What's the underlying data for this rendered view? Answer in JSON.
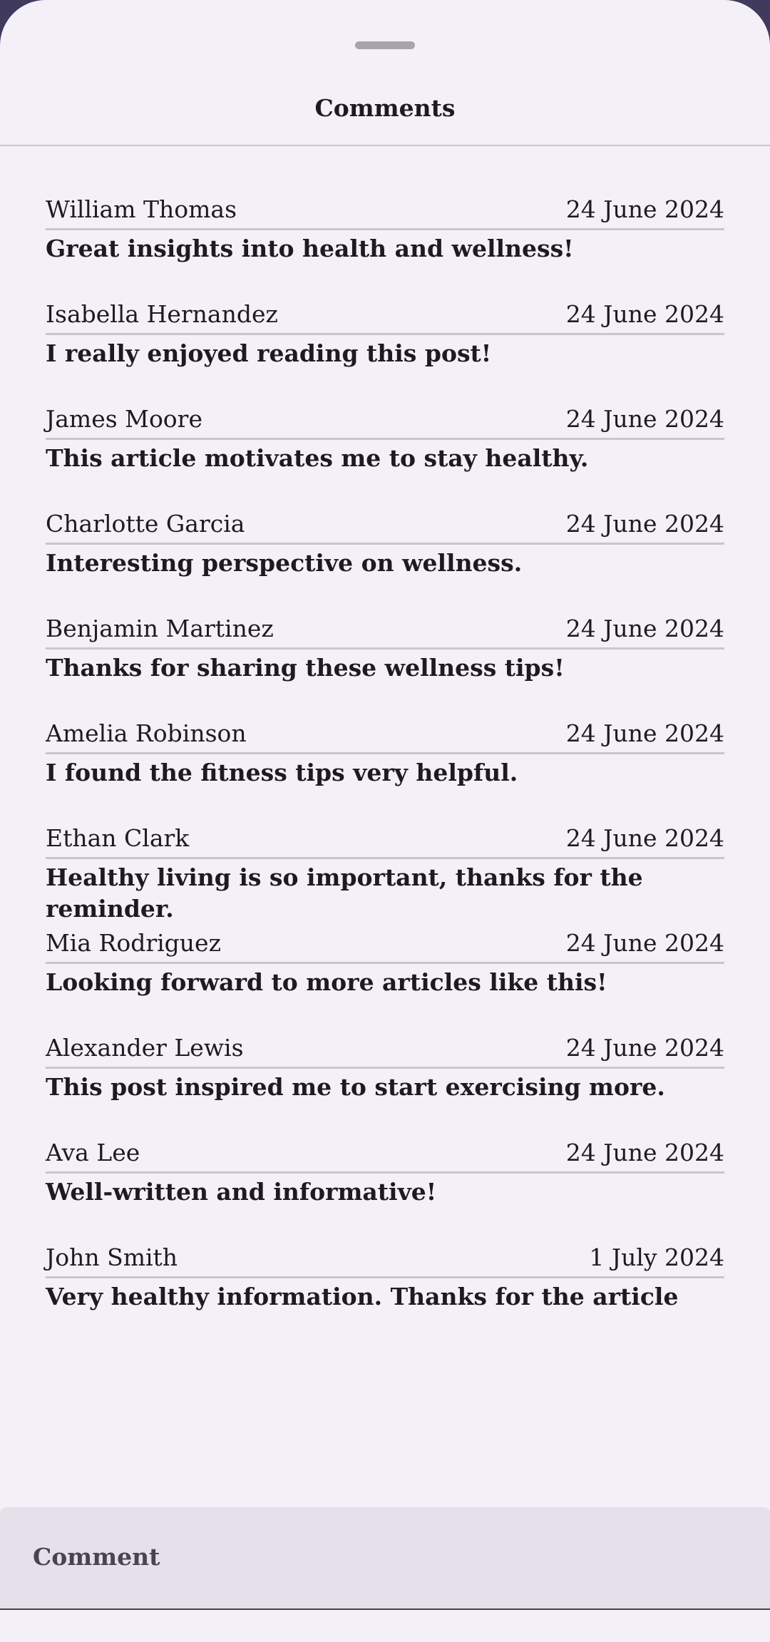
{
  "sheet": {
    "title": "Comments"
  },
  "comments": [
    {
      "author": "William Thomas",
      "date": "24 June 2024",
      "text": "Great insights into health and wellness!"
    },
    {
      "author": "Isabella Hernandez",
      "date": "24 June 2024",
      "text": "I really enjoyed reading this post!"
    },
    {
      "author": "James Moore",
      "date": "24 June 2024",
      "text": "This article motivates me to stay healthy."
    },
    {
      "author": "Charlotte Garcia",
      "date": "24 June 2024",
      "text": "Interesting perspective on wellness."
    },
    {
      "author": "Benjamin Martinez",
      "date": "24 June 2024",
      "text": "Thanks for sharing these wellness tips!"
    },
    {
      "author": "Amelia Robinson",
      "date": "24 June 2024",
      "text": "I found the fitness tips very helpful."
    },
    {
      "author": "Ethan Clark",
      "date": "24 June 2024",
      "text": "Healthy living is so important, thanks for the reminder."
    },
    {
      "author": "Mia Rodriguez",
      "date": "24 June 2024",
      "text": "Looking forward to more articles like this!"
    },
    {
      "author": "Alexander Lewis",
      "date": "24 June 2024",
      "text": "This post inspired me to start exercising more."
    },
    {
      "author": "Ava Lee",
      "date": "24 June 2024",
      "text": "Well-written and informative!"
    },
    {
      "author": "John Smith",
      "date": "1 July 2024",
      "text": "Very healthy information. Thanks for the article"
    }
  ],
  "comment_input": {
    "placeholder": "Comment",
    "value": ""
  },
  "colors": {
    "sheet_background": "#f4f0f8",
    "backdrop": "#3f3a5e",
    "divider": "#cac4d0",
    "text": "#1d1b20",
    "input_background": "#e6e0ea"
  }
}
